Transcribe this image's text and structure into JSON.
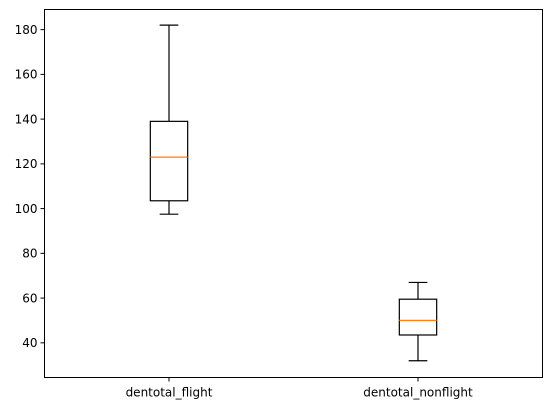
{
  "chart_data": {
    "type": "box",
    "title": "",
    "xlabel": "",
    "ylabel": "",
    "categories": [
      "dentotal_flight",
      "dentotal_nonflight"
    ],
    "boxes": [
      {
        "name": "dentotal_flight",
        "whislo": 97.5,
        "q1": 103.5,
        "med": 123.0,
        "q3": 139.0,
        "whishi": 182.0
      },
      {
        "name": "dentotal_nonflight",
        "whislo": 32.0,
        "q1": 43.5,
        "med": 50.0,
        "q3": 59.5,
        "whishi": 67.0
      }
    ],
    "ylim": [
      24.5,
      189.0
    ],
    "yticks": [
      40,
      60,
      80,
      100,
      120,
      140,
      160,
      180
    ],
    "grid": false,
    "colors": {
      "box": "#000000",
      "median": "#ff7f0e"
    }
  }
}
